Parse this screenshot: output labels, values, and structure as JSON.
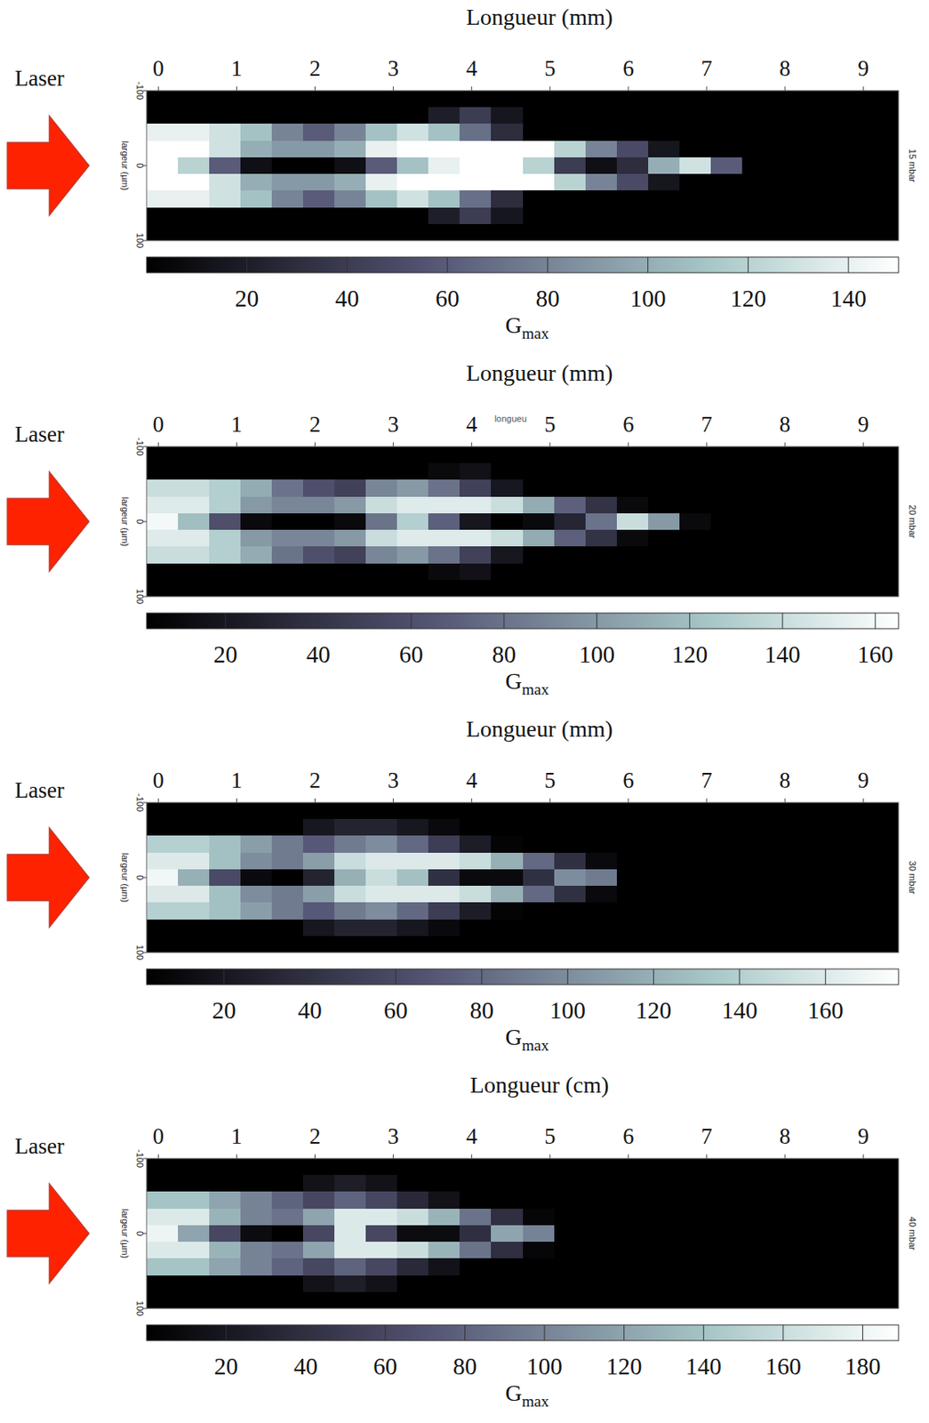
{
  "chart_data": [
    {
      "type": "heatmap",
      "x_label": "Longueur (mm)",
      "subtitle": "15 mbar",
      "y_label": "largeur (µm)",
      "annotations": [
        "Laser"
      ],
      "x": [
        0.05,
        0.45,
        0.85,
        1.25,
        1.65,
        2.05,
        2.45,
        2.85,
        3.25,
        3.65,
        4.05,
        4.45,
        4.85,
        5.25,
        5.65,
        6.05,
        6.45,
        6.85,
        7.25,
        7.65,
        8.05,
        8.45,
        8.85,
        9.25
      ],
      "y": [
        -88.9,
        -66.7,
        -44.4,
        -22.2,
        0,
        22.2,
        44.4,
        66.7,
        88.9
      ],
      "z": [
        [
          0,
          0,
          0,
          0,
          0,
          0,
          0,
          0,
          0,
          0,
          0,
          0,
          0,
          0,
          0,
          0,
          0,
          0,
          0,
          0,
          0,
          0,
          0,
          0
        ],
        [
          0,
          0,
          0,
          0,
          0,
          0,
          0,
          0,
          0,
          20,
          40,
          15,
          0,
          0,
          0,
          0,
          0,
          0,
          0,
          0,
          0,
          0,
          0,
          0
        ],
        [
          140,
          140,
          130,
          110,
          80,
          60,
          80,
          110,
          130,
          110,
          70,
          30,
          0,
          0,
          0,
          0,
          0,
          0,
          0,
          0,
          0,
          0,
          0,
          0
        ],
        [
          150,
          150,
          130,
          100,
          90,
          90,
          100,
          140,
          150,
          150,
          150,
          150,
          150,
          120,
          80,
          50,
          15,
          0,
          0,
          0,
          0,
          0,
          0,
          0
        ],
        [
          150,
          120,
          60,
          10,
          0,
          0,
          10,
          60,
          110,
          140,
          150,
          150,
          120,
          40,
          10,
          30,
          100,
          130,
          60,
          0,
          0,
          0,
          0,
          0
        ],
        [
          150,
          150,
          130,
          100,
          90,
          90,
          100,
          140,
          150,
          150,
          150,
          150,
          150,
          120,
          80,
          50,
          15,
          0,
          0,
          0,
          0,
          0,
          0,
          0
        ],
        [
          140,
          140,
          130,
          110,
          80,
          60,
          80,
          110,
          130,
          110,
          70,
          30,
          0,
          0,
          0,
          0,
          0,
          0,
          0,
          0,
          0,
          0,
          0,
          0
        ],
        [
          0,
          0,
          0,
          0,
          0,
          0,
          0,
          0,
          0,
          20,
          40,
          15,
          0,
          0,
          0,
          0,
          0,
          0,
          0,
          0,
          0,
          0,
          0,
          0
        ],
        [
          0,
          0,
          0,
          0,
          0,
          0,
          0,
          0,
          0,
          0,
          0,
          0,
          0,
          0,
          0,
          0,
          0,
          0,
          0,
          0,
          0,
          0,
          0,
          0
        ]
      ],
      "xlim": [
        -0.15,
        9.45
      ],
      "xticks": [
        0,
        1,
        2,
        3,
        4,
        5,
        6,
        7,
        8,
        9
      ],
      "ylim": [
        -100,
        100
      ],
      "yticks": [
        -100,
        0,
        100
      ],
      "colorbar": {
        "label": "G",
        "label_sub": "max",
        "range": [
          0,
          150
        ],
        "ticks": [
          20,
          40,
          60,
          80,
          100,
          120,
          140
        ]
      }
    },
    {
      "type": "heatmap",
      "x_label": "Longueur (mm)",
      "subtitle": "20 mbar",
      "y_label": "largeur (µm)",
      "annotations": [
        "Laser",
        "longueu"
      ],
      "x": [
        0.05,
        0.45,
        0.85,
        1.25,
        1.65,
        2.05,
        2.45,
        2.85,
        3.25,
        3.65,
        4.05,
        4.45,
        4.85,
        5.25,
        5.65,
        6.05,
        6.45,
        6.85,
        7.25,
        7.65,
        8.05,
        8.45,
        8.85,
        9.25
      ],
      "y": [
        -88.9,
        -66.7,
        -44.4,
        -22.2,
        0,
        22.2,
        44.4,
        66.7,
        88.9
      ],
      "z": [
        [
          0,
          0,
          0,
          0,
          0,
          0,
          0,
          0,
          0,
          0,
          0,
          0,
          0,
          0,
          0,
          0,
          0,
          0,
          0,
          0,
          0,
          0,
          0,
          0
        ],
        [
          0,
          0,
          0,
          0,
          0,
          0,
          0,
          0,
          0,
          10,
          15,
          0,
          0,
          0,
          0,
          0,
          0,
          0,
          0,
          0,
          0,
          0,
          0,
          0
        ],
        [
          140,
          140,
          130,
          110,
          80,
          60,
          50,
          90,
          100,
          80,
          50,
          20,
          0,
          0,
          0,
          0,
          0,
          0,
          0,
          0,
          0,
          0,
          0,
          0
        ],
        [
          150,
          150,
          130,
          100,
          90,
          90,
          100,
          140,
          150,
          150,
          150,
          140,
          110,
          70,
          40,
          10,
          0,
          0,
          0,
          0,
          0,
          0,
          0,
          0
        ],
        [
          160,
          120,
          60,
          10,
          0,
          0,
          10,
          80,
          130,
          70,
          20,
          0,
          10,
          30,
          80,
          140,
          100,
          10,
          0,
          0,
          0,
          0,
          0,
          0
        ],
        [
          150,
          150,
          130,
          100,
          90,
          90,
          100,
          140,
          150,
          150,
          150,
          140,
          110,
          70,
          40,
          10,
          0,
          0,
          0,
          0,
          0,
          0,
          0,
          0
        ],
        [
          140,
          140,
          130,
          110,
          80,
          60,
          50,
          90,
          100,
          80,
          50,
          20,
          0,
          0,
          0,
          0,
          0,
          0,
          0,
          0,
          0,
          0,
          0,
          0
        ],
        [
          0,
          0,
          0,
          0,
          0,
          0,
          0,
          0,
          0,
          10,
          15,
          0,
          0,
          0,
          0,
          0,
          0,
          0,
          0,
          0,
          0,
          0,
          0,
          0
        ],
        [
          0,
          0,
          0,
          0,
          0,
          0,
          0,
          0,
          0,
          0,
          0,
          0,
          0,
          0,
          0,
          0,
          0,
          0,
          0,
          0,
          0,
          0,
          0,
          0
        ]
      ],
      "xlim": [
        -0.15,
        9.45
      ],
      "xticks": [
        0,
        1,
        2,
        3,
        4,
        5,
        6,
        7,
        8,
        9
      ],
      "ylim": [
        -100,
        100
      ],
      "yticks": [
        -100,
        0,
        100
      ],
      "colorbar": {
        "label": "G",
        "label_sub": "max",
        "range": [
          3,
          165
        ],
        "ticks": [
          20,
          40,
          60,
          80,
          100,
          120,
          140,
          160
        ]
      }
    },
    {
      "type": "heatmap",
      "x_label": "Longueur (mm)",
      "subtitle": "30 mbar",
      "y_label": "largeur (µm)",
      "annotations": [
        "Laser"
      ],
      "x": [
        0.05,
        0.45,
        0.85,
        1.25,
        1.65,
        2.05,
        2.45,
        2.85,
        3.25,
        3.65,
        4.05,
        4.45,
        4.85,
        5.25,
        5.65,
        6.05,
        6.45,
        6.85,
        7.25,
        7.65,
        8.05,
        8.45,
        8.85,
        9.25
      ],
      "y": [
        -88.9,
        -66.7,
        -44.4,
        -22.2,
        0,
        22.2,
        44.4,
        66.7,
        88.9
      ],
      "z": [
        [
          0,
          0,
          0,
          0,
          0,
          0,
          0,
          0,
          0,
          0,
          0,
          0,
          0,
          0,
          0,
          0,
          0,
          0,
          0,
          0,
          0,
          0,
          0,
          0
        ],
        [
          0,
          0,
          0,
          0,
          0,
          20,
          30,
          30,
          20,
          10,
          0,
          0,
          0,
          0,
          0,
          0,
          0,
          0,
          0,
          0,
          0,
          0,
          0,
          0
        ],
        [
          140,
          140,
          130,
          110,
          90,
          70,
          90,
          100,
          80,
          50,
          25,
          5,
          0,
          0,
          0,
          0,
          0,
          0,
          0,
          0,
          0,
          0,
          0,
          0
        ],
        [
          160,
          160,
          130,
          100,
          90,
          110,
          150,
          160,
          160,
          160,
          150,
          120,
          80,
          40,
          10,
          0,
          0,
          0,
          0,
          0,
          0,
          0,
          0,
          0
        ],
        [
          170,
          120,
          60,
          10,
          0,
          30,
          120,
          150,
          130,
          40,
          10,
          10,
          40,
          100,
          90,
          0,
          0,
          0,
          0,
          0,
          0,
          0,
          0,
          0
        ],
        [
          160,
          160,
          130,
          100,
          90,
          110,
          150,
          160,
          160,
          160,
          150,
          120,
          80,
          40,
          10,
          0,
          0,
          0,
          0,
          0,
          0,
          0,
          0,
          0
        ],
        [
          140,
          140,
          130,
          110,
          90,
          70,
          90,
          100,
          80,
          50,
          25,
          5,
          0,
          0,
          0,
          0,
          0,
          0,
          0,
          0,
          0,
          0,
          0,
          0
        ],
        [
          0,
          0,
          0,
          0,
          0,
          20,
          30,
          30,
          20,
          10,
          0,
          0,
          0,
          0,
          0,
          0,
          0,
          0,
          0,
          0,
          0,
          0,
          0,
          0
        ],
        [
          0,
          0,
          0,
          0,
          0,
          0,
          0,
          0,
          0,
          0,
          0,
          0,
          0,
          0,
          0,
          0,
          0,
          0,
          0,
          0,
          0,
          0,
          0,
          0
        ]
      ],
      "xlim": [
        -0.15,
        9.45
      ],
      "xticks": [
        0,
        1,
        2,
        3,
        4,
        5,
        6,
        7,
        8,
        9
      ],
      "ylim": [
        -100,
        100
      ],
      "yticks": [
        -100,
        0,
        100
      ],
      "colorbar": {
        "label": "G",
        "label_sub": "max",
        "range": [
          2,
          177
        ],
        "ticks": [
          20,
          40,
          60,
          80,
          100,
          120,
          140,
          160
        ]
      }
    },
    {
      "type": "heatmap",
      "x_label": "Longueur (cm)",
      "subtitle": "40 mbar",
      "y_label": "largeur (µm)",
      "annotations": [
        "Laser"
      ],
      "x": [
        0.05,
        0.45,
        0.85,
        1.25,
        1.65,
        2.05,
        2.45,
        2.85,
        3.25,
        3.65,
        4.05,
        4.45,
        4.85,
        5.25,
        5.65,
        6.05,
        6.45,
        6.85,
        7.25,
        7.65,
        8.05,
        8.45,
        8.85,
        9.25
      ],
      "y": [
        -88.9,
        -66.7,
        -44.4,
        -22.2,
        0,
        22.2,
        44.4,
        66.7,
        88.9
      ],
      "z": [
        [
          0,
          0,
          0,
          0,
          0,
          0,
          0,
          0,
          0,
          0,
          0,
          0,
          0,
          0,
          0,
          0,
          0,
          0,
          0,
          0,
          0,
          0,
          0,
          0
        ],
        [
          0,
          0,
          0,
          0,
          0,
          15,
          25,
          15,
          0,
          0,
          0,
          0,
          0,
          0,
          0,
          0,
          0,
          0,
          0,
          0,
          0,
          0,
          0,
          0
        ],
        [
          140,
          140,
          120,
          100,
          80,
          60,
          80,
          60,
          35,
          15,
          0,
          0,
          0,
          0,
          0,
          0,
          0,
          0,
          0,
          0,
          0,
          0,
          0,
          0
        ],
        [
          170,
          170,
          130,
          100,
          90,
          120,
          170,
          170,
          160,
          130,
          90,
          40,
          5,
          0,
          0,
          0,
          0,
          0,
          0,
          0,
          0,
          0,
          0,
          0
        ],
        [
          180,
          120,
          60,
          10,
          0,
          60,
          170,
          60,
          10,
          10,
          40,
          120,
          100,
          0,
          0,
          0,
          0,
          0,
          0,
          0,
          0,
          0,
          0,
          0
        ],
        [
          170,
          170,
          130,
          100,
          90,
          120,
          170,
          170,
          160,
          130,
          90,
          40,
          5,
          0,
          0,
          0,
          0,
          0,
          0,
          0,
          0,
          0,
          0,
          0
        ],
        [
          140,
          140,
          120,
          100,
          80,
          60,
          80,
          60,
          35,
          15,
          0,
          0,
          0,
          0,
          0,
          0,
          0,
          0,
          0,
          0,
          0,
          0,
          0,
          0
        ],
        [
          0,
          0,
          0,
          0,
          0,
          15,
          25,
          15,
          0,
          0,
          0,
          0,
          0,
          0,
          0,
          0,
          0,
          0,
          0,
          0,
          0,
          0,
          0,
          0
        ],
        [
          0,
          0,
          0,
          0,
          0,
          0,
          0,
          0,
          0,
          0,
          0,
          0,
          0,
          0,
          0,
          0,
          0,
          0,
          0,
          0,
          0,
          0,
          0,
          0
        ]
      ],
      "xlim": [
        -0.15,
        9.45
      ],
      "xticks": [
        0,
        1,
        2,
        3,
        4,
        5,
        6,
        7,
        8,
        9
      ],
      "ylim": [
        -100,
        100
      ],
      "yticks": [
        -100,
        0,
        100
      ],
      "colorbar": {
        "label": "G",
        "label_sub": "max",
        "range": [
          0,
          189
        ],
        "ticks": [
          20,
          40,
          60,
          80,
          100,
          120,
          140,
          160,
          180
        ]
      }
    }
  ]
}
